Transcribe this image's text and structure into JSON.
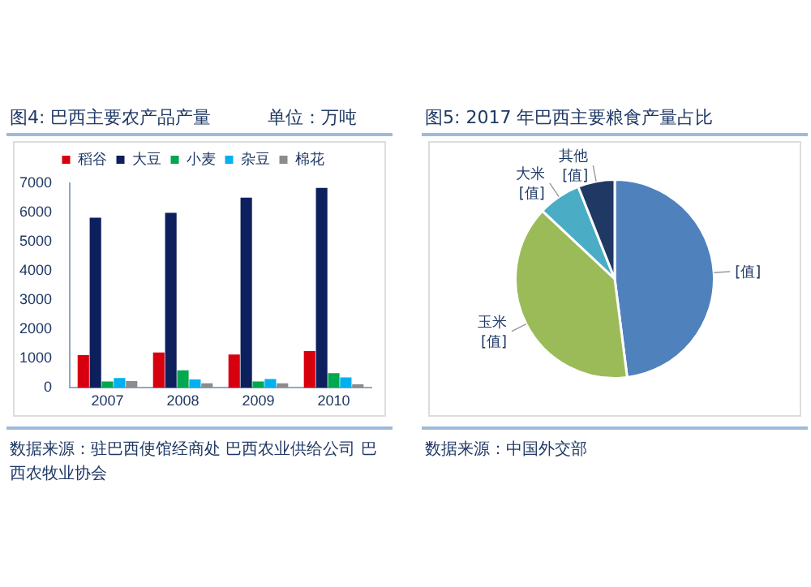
{
  "chart_data": [
    {
      "type": "bar",
      "title": "图4: 巴西主要农产品产量",
      "annotations": [
        "单位：万吨",
        "数据来源：驻巴西使馆经商处  巴西农业供给公司  巴西农牧业协会"
      ],
      "categories": [
        "2007",
        "2008",
        "2009",
        "2010"
      ],
      "series": [
        {
          "name": "稻谷",
          "color": "#d7000f",
          "values": [
            1120,
            1210,
            1140,
            1260
          ]
        },
        {
          "name": "大豆",
          "color": "#0d1f5c",
          "values": [
            5820,
            5990,
            6510,
            6840
          ]
        },
        {
          "name": "小麦",
          "color": "#00a84f",
          "values": [
            220,
            600,
            220,
            500
          ]
        },
        {
          "name": "杂豆",
          "color": "#00b0f0",
          "values": [
            340,
            290,
            300,
            360
          ]
        },
        {
          "name": "棉花",
          "color": "#8c8c8c",
          "values": [
            230,
            160,
            160,
            120
          ]
        }
      ],
      "ylim": [
        0,
        7000
      ],
      "yticks": [
        0,
        1000,
        2000,
        3000,
        4000,
        5000,
        6000,
        7000
      ],
      "legend": "top",
      "grid": false
    },
    {
      "type": "pie",
      "title": "图5: 2017 年巴西主要粮食产量占比",
      "annotations": [
        "数据来源：中国外交部"
      ],
      "categories": [
        null,
        "玉米",
        "大米",
        "其他"
      ],
      "values": [
        48,
        39,
        7,
        6
      ],
      "colors": [
        "#4f81bd",
        "#9bbb59",
        "#4bacc6",
        "#1f3864"
      ],
      "value_labels": [
        "[值]",
        "[值]",
        "[值]",
        "[值]"
      ],
      "legend": false
    }
  ]
}
